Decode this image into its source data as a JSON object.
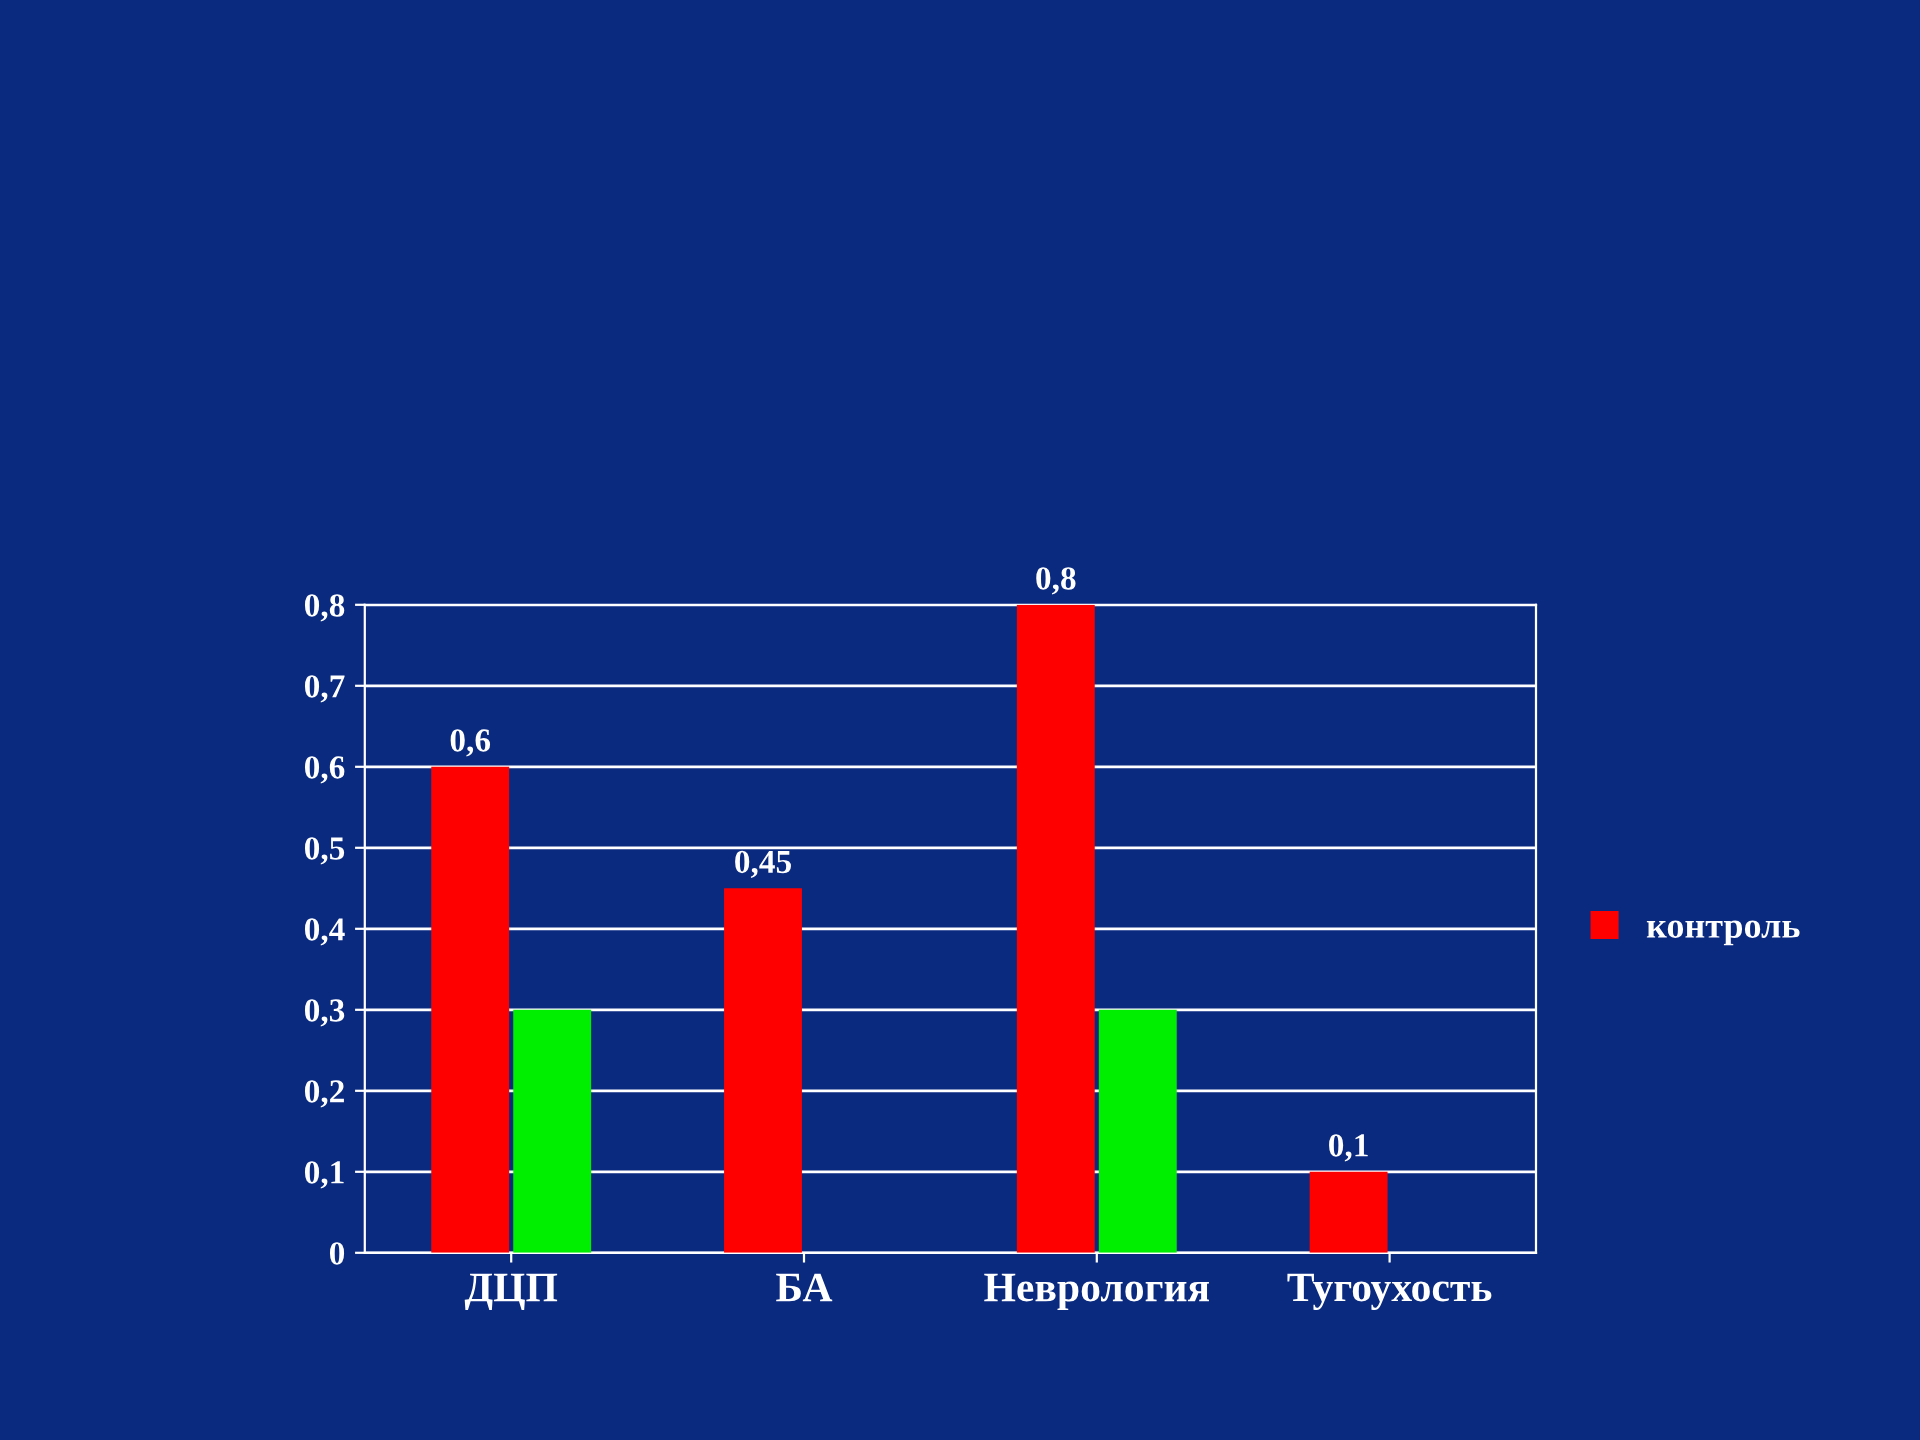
{
  "chart_data": {
    "type": "bar",
    "categories": [
      "ДЦП",
      "БА",
      "Неврология",
      "Тугоухость"
    ],
    "series": [
      {
        "name": "контроль",
        "color": "#ff0000",
        "values": [
          0.6,
          0.45,
          0.8,
          0.1
        ],
        "value_labels": [
          "0,6",
          "0,45",
          "0,8",
          "0,1"
        ]
      },
      {
        "color": "#00ee00",
        "values": [
          0.3,
          0,
          0.3,
          0
        ]
      }
    ],
    "ylim": [
      0,
      0.8
    ],
    "yticks": [
      0,
      {
        "value": 0.1,
        "label": "0,1"
      },
      {
        "value": 0.2,
        "label": "0,2"
      },
      {
        "value": 0.3,
        "label": "0,3"
      },
      {
        "value": 0.4,
        "label": "0,4"
      },
      {
        "value": 0.5,
        "label": "0,5"
      },
      {
        "value": 0.6,
        "label": "0,6"
      },
      {
        "value": 0.7,
        "label": "0,7"
      },
      {
        "value": 0.8,
        "label": "0,8"
      }
    ],
    "grid": "y",
    "legend": "right"
  }
}
